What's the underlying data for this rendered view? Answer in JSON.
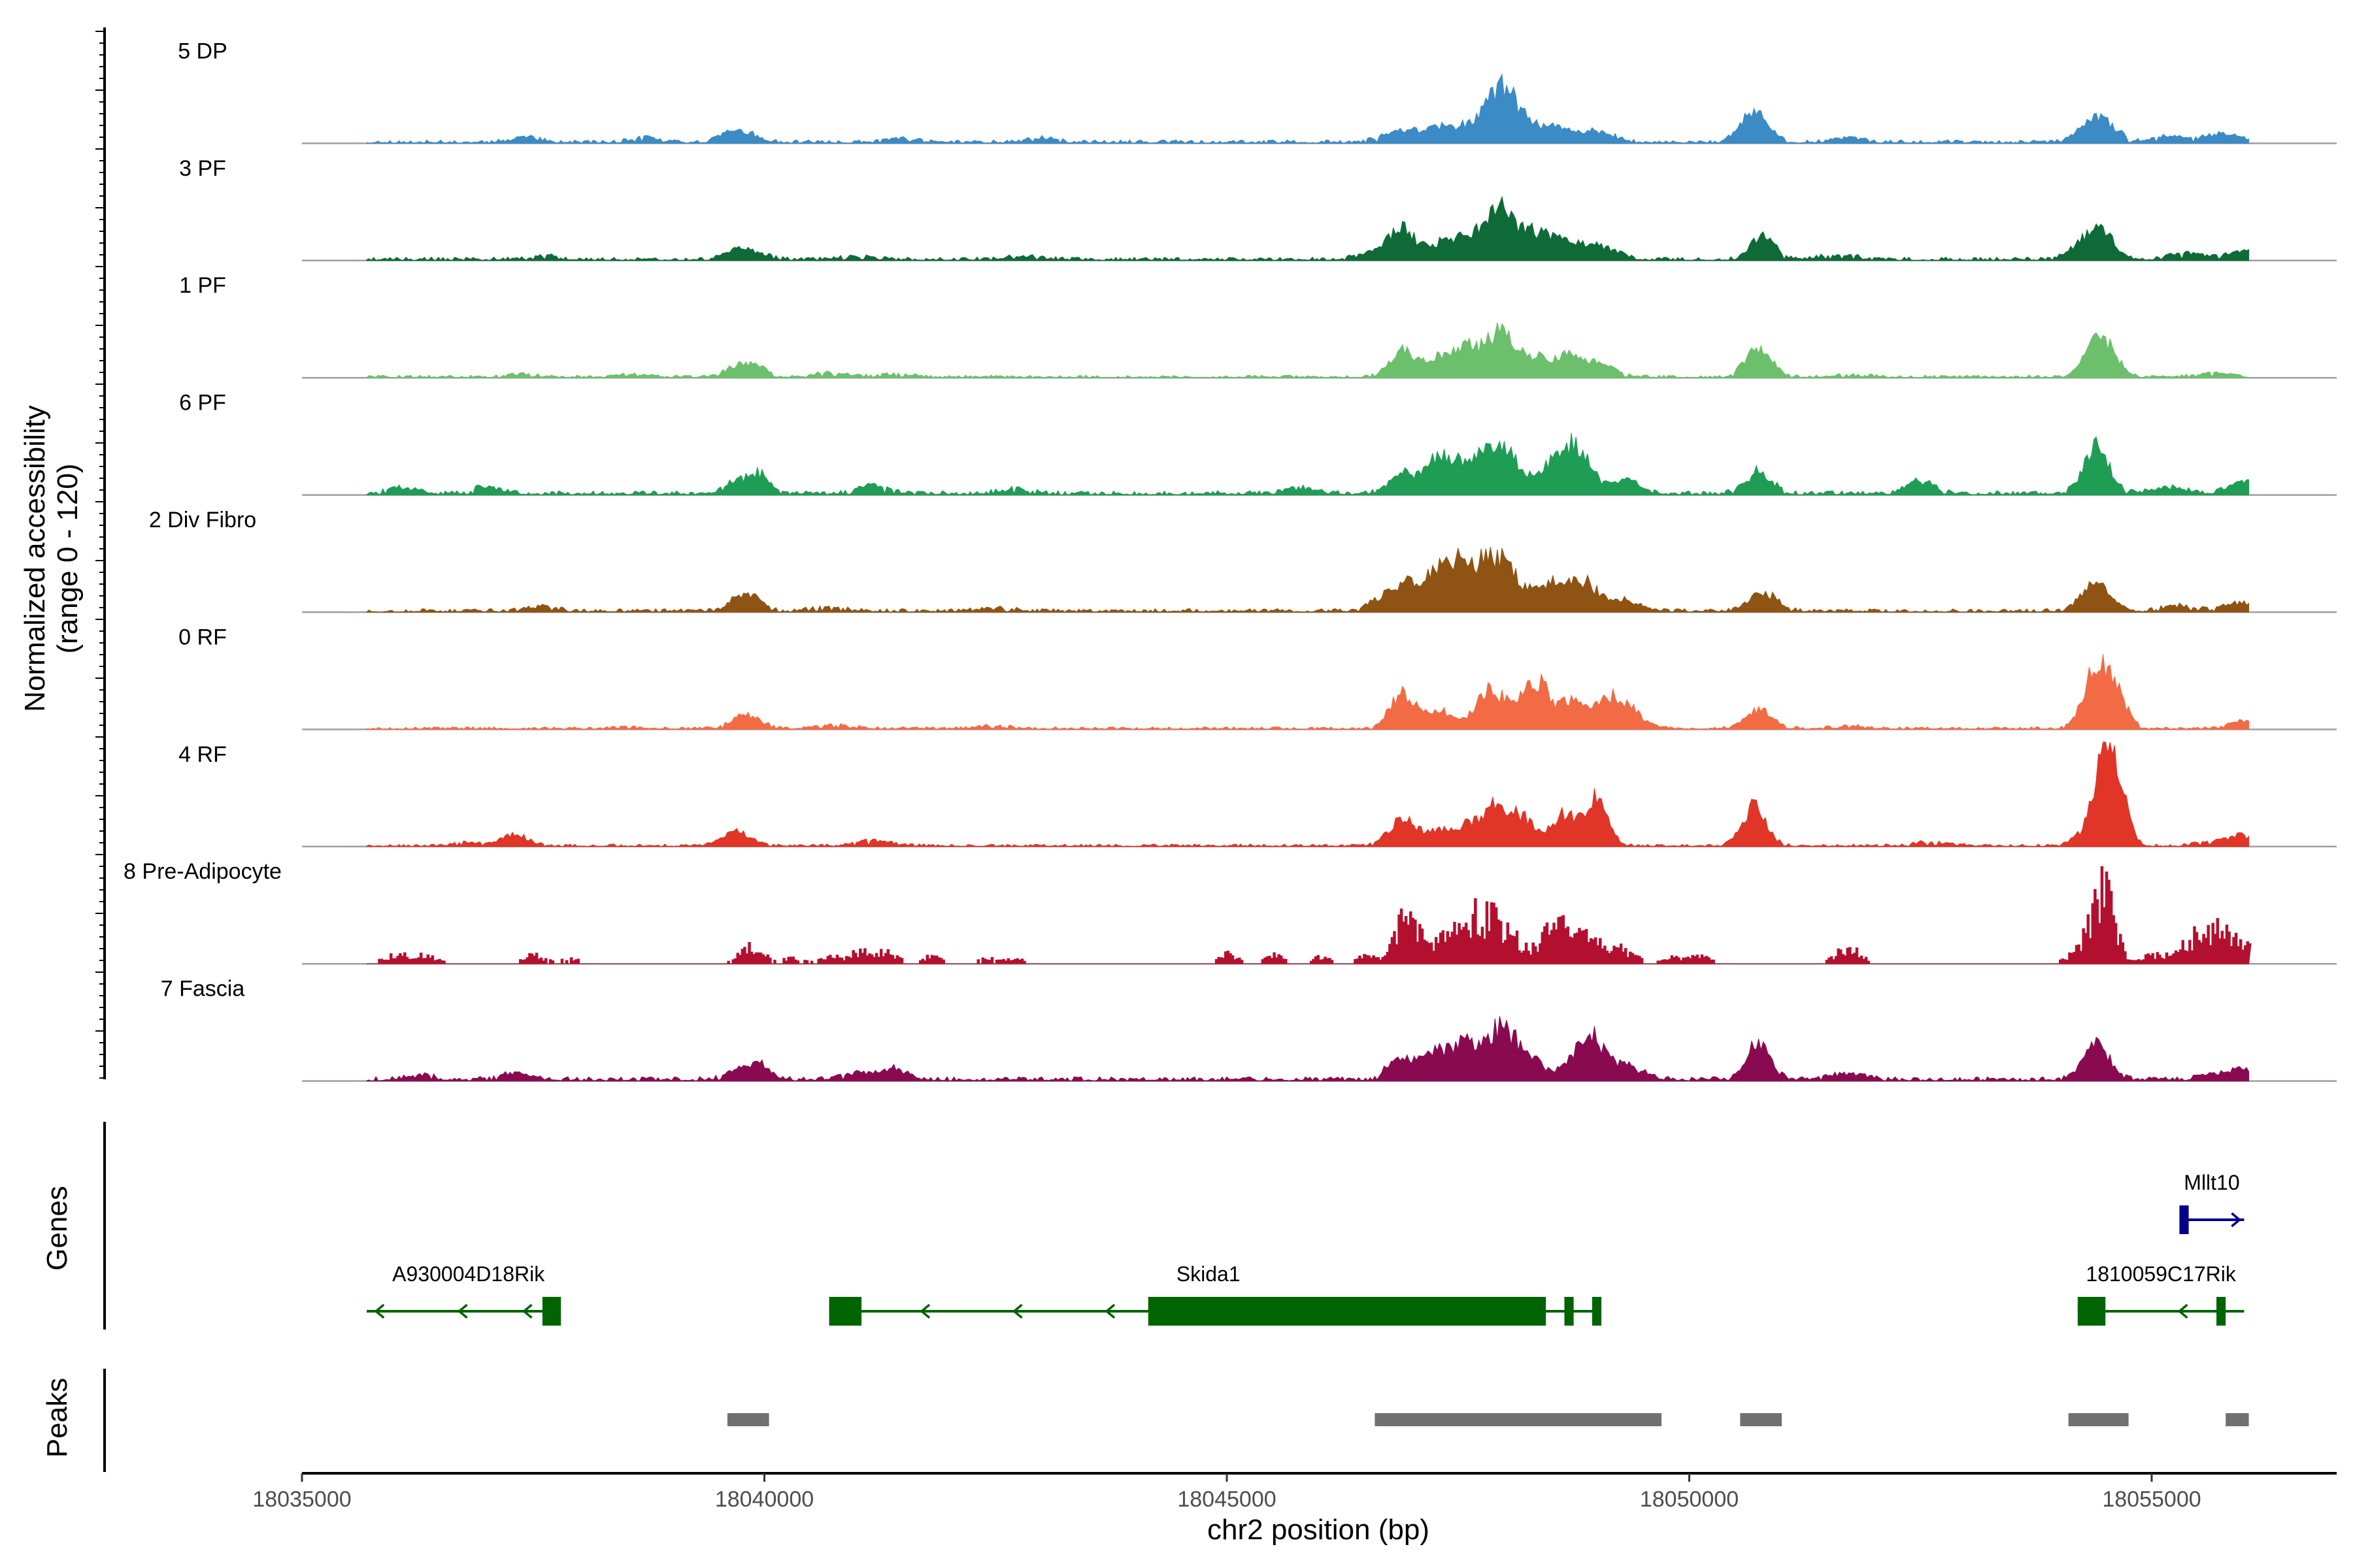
{
  "chart_data": {
    "type": "area",
    "title": "",
    "region": "chr2",
    "xlabel": "chr2 position (bp)",
    "ylabel_line1": "Normalized accessibility",
    "ylabel_line2": "(range 0 - 120)",
    "y_range": [
      0,
      120
    ],
    "xlim": [
      18035000,
      18057000
    ],
    "xticks": [
      18035000,
      18040000,
      18045000,
      18050000,
      18055000
    ],
    "xtick_labels": [
      "18035000",
      "18040000",
      "18045000",
      "18050000",
      "18055000"
    ],
    "baseline_color": "#9e9e9e",
    "tracks": [
      {
        "label": "5 DP",
        "color": "#3b8bc6",
        "style": "smooth",
        "seed": 11,
        "noise": 4,
        "peaks": [
          [
            18037400,
            6,
            150
          ],
          [
            18038700,
            5,
            140
          ],
          [
            18039700,
            13,
            180
          ],
          [
            18041500,
            4,
            160
          ],
          [
            18043000,
            5,
            150
          ],
          [
            18046900,
            12,
            200
          ],
          [
            18047300,
            15,
            160
          ],
          [
            18047650,
            18,
            160
          ],
          [
            18047950,
            54,
            140
          ],
          [
            18048200,
            22,
            150
          ],
          [
            18048550,
            15,
            160
          ],
          [
            18049000,
            12,
            170
          ],
          [
            18050700,
            34,
            150
          ],
          [
            18051700,
            5,
            160
          ],
          [
            18054300,
            7,
            150
          ],
          [
            18054450,
            26,
            150
          ],
          [
            18055200,
            6,
            200
          ],
          [
            18055800,
            10,
            180
          ]
        ]
      },
      {
        "label": "3 PF",
        "color": "#0e6b38",
        "style": "smooth",
        "seed": 23,
        "noise": 4,
        "peaks": [
          [
            18037600,
            4,
            150
          ],
          [
            18039800,
            12,
            180
          ],
          [
            18041000,
            3,
            200
          ],
          [
            18042800,
            3,
            200
          ],
          [
            18046600,
            7,
            180
          ],
          [
            18046900,
            35,
            140
          ],
          [
            18047300,
            16,
            130
          ],
          [
            18047600,
            27,
            150
          ],
          [
            18047950,
            63,
            130
          ],
          [
            18048300,
            30,
            160
          ],
          [
            18048600,
            18,
            140
          ],
          [
            18049000,
            16,
            200
          ],
          [
            18050800,
            25,
            130
          ],
          [
            18051600,
            5,
            200
          ],
          [
            18054250,
            12,
            160
          ],
          [
            18054450,
            30,
            140
          ],
          [
            18055400,
            7,
            200
          ],
          [
            18056000,
            10,
            160
          ]
        ]
      },
      {
        "label": "1 PF",
        "color": "#6cbf6b",
        "style": "smooth",
        "seed": 31,
        "noise": 3,
        "peaks": [
          [
            18037400,
            3,
            150
          ],
          [
            18038600,
            3,
            150
          ],
          [
            18039800,
            17,
            170
          ],
          [
            18040700,
            5,
            200
          ],
          [
            18041400,
            3,
            200
          ],
          [
            18046900,
            28,
            140
          ],
          [
            18047300,
            21,
            160
          ],
          [
            18047600,
            30,
            140
          ],
          [
            18047950,
            50,
            140
          ],
          [
            18048300,
            22,
            150
          ],
          [
            18048700,
            24,
            150
          ],
          [
            18049050,
            14,
            160
          ],
          [
            18050750,
            33,
            140
          ],
          [
            18051800,
            3,
            200
          ],
          [
            18054450,
            45,
            150
          ],
          [
            18055700,
            4,
            200
          ]
        ]
      },
      {
        "label": "6 PF",
        "color": "#1f9d55",
        "style": "smooth",
        "seed": 47,
        "noise": 5,
        "peaks": [
          [
            18036100,
            6,
            150
          ],
          [
            18037000,
            7,
            150
          ],
          [
            18039700,
            12,
            130
          ],
          [
            18039950,
            22,
            120
          ],
          [
            18041200,
            9,
            150
          ],
          [
            18042700,
            5,
            160
          ],
          [
            18045800,
            6,
            160
          ],
          [
            18046900,
            22,
            150
          ],
          [
            18047300,
            38,
            140
          ],
          [
            18047600,
            27,
            140
          ],
          [
            18047900,
            55,
            140
          ],
          [
            18048150,
            24,
            140
          ],
          [
            18048550,
            33,
            140
          ],
          [
            18048800,
            45,
            150
          ],
          [
            18049300,
            14,
            160
          ],
          [
            18050750,
            24,
            140
          ],
          [
            18052500,
            14,
            150
          ],
          [
            18054400,
            50,
            140
          ],
          [
            18055200,
            6,
            200
          ],
          [
            18056000,
            15,
            150
          ]
        ]
      },
      {
        "label": "2 Div Fibro",
        "color": "#8f5413",
        "style": "smooth",
        "seed": 53,
        "noise": 4,
        "peaks": [
          [
            18037600,
            5,
            150
          ],
          [
            18039800,
            20,
            150
          ],
          [
            18040700,
            4,
            200
          ],
          [
            18042500,
            3,
            200
          ],
          [
            18046700,
            16,
            150
          ],
          [
            18047000,
            27,
            150
          ],
          [
            18047300,
            38,
            140
          ],
          [
            18047550,
            48,
            140
          ],
          [
            18047850,
            50,
            140
          ],
          [
            18048100,
            35,
            140
          ],
          [
            18048500,
            30,
            140
          ],
          [
            18048850,
            34,
            150
          ],
          [
            18049300,
            12,
            160
          ],
          [
            18050800,
            20,
            150
          ],
          [
            18054400,
            33,
            150
          ],
          [
            18055300,
            6,
            200
          ],
          [
            18055950,
            10,
            150
          ]
        ]
      },
      {
        "label": "0 RF",
        "color": "#f26b44",
        "style": "smooth",
        "seed": 67,
        "noise": 3,
        "peaks": [
          [
            18038600,
            3,
            150
          ],
          [
            18039800,
            15,
            160
          ],
          [
            18040800,
            4,
            200
          ],
          [
            18042500,
            3,
            200
          ],
          [
            18046900,
            38,
            140
          ],
          [
            18047300,
            20,
            140
          ],
          [
            18047800,
            37,
            130
          ],
          [
            18048050,
            24,
            140
          ],
          [
            18048350,
            52,
            120
          ],
          [
            18048700,
            30,
            140
          ],
          [
            18049100,
            30,
            140
          ],
          [
            18049350,
            20,
            150
          ],
          [
            18050750,
            22,
            140
          ],
          [
            18051700,
            3,
            200
          ],
          [
            18054400,
            66,
            130
          ],
          [
            18054600,
            35,
            130
          ],
          [
            18056000,
            10,
            150
          ]
        ]
      },
      {
        "label": "4 RF",
        "color": "#e03527",
        "style": "smooth",
        "seed": 79,
        "noise": 3,
        "peaks": [
          [
            18036800,
            4,
            150
          ],
          [
            18037300,
            14,
            130
          ],
          [
            18039700,
            16,
            150
          ],
          [
            18041200,
            6,
            200
          ],
          [
            18046900,
            30,
            140
          ],
          [
            18047300,
            16,
            140
          ],
          [
            18047600,
            20,
            140
          ],
          [
            18047900,
            40,
            140
          ],
          [
            18048200,
            30,
            140
          ],
          [
            18048650,
            38,
            120
          ],
          [
            18049000,
            55,
            120
          ],
          [
            18050700,
            44,
            130
          ],
          [
            18052600,
            4,
            200
          ],
          [
            18054300,
            15,
            130
          ],
          [
            18054480,
            97,
            100
          ],
          [
            18054650,
            62,
            100
          ],
          [
            18055700,
            5,
            200
          ],
          [
            18056000,
            9,
            150
          ]
        ]
      },
      {
        "label": "8 Pre-Adipocyte",
        "color": "#b3102f",
        "style": "blocky",
        "seed": 97,
        "noise": 4,
        "peaks": [
          [
            18036000,
            10,
            140
          ],
          [
            18036300,
            9,
            140
          ],
          [
            18037500,
            10,
            120
          ],
          [
            18037900,
            6,
            100
          ],
          [
            18039850,
            19,
            130
          ],
          [
            18040300,
            8,
            100
          ],
          [
            18040700,
            10,
            100
          ],
          [
            18041000,
            15,
            100
          ],
          [
            18041300,
            16,
            120
          ],
          [
            18041800,
            9,
            100
          ],
          [
            18042400,
            6,
            100
          ],
          [
            18042700,
            6,
            100
          ],
          [
            18045000,
            11,
            100
          ],
          [
            18045500,
            10,
            100
          ],
          [
            18046000,
            8,
            100
          ],
          [
            18046500,
            9,
            100
          ],
          [
            18046950,
            75,
            120
          ],
          [
            18047400,
            35,
            150
          ],
          [
            18047700,
            48,
            150
          ],
          [
            18048000,
            43,
            150
          ],
          [
            18048500,
            35,
            150
          ],
          [
            18048800,
            30,
            160
          ],
          [
            18049200,
            22,
            160
          ],
          [
            18049800,
            8,
            100
          ],
          [
            18050100,
            11,
            100
          ],
          [
            18051700,
            19,
            130
          ],
          [
            18054300,
            25,
            150
          ],
          [
            18054480,
            70,
            120
          ],
          [
            18055000,
            10,
            100
          ],
          [
            18055400,
            25,
            150
          ],
          [
            18055700,
            35,
            150
          ],
          [
            18056000,
            18,
            150
          ]
        ]
      },
      {
        "label": "7 Fascia",
        "color": "#8a0a52",
        "style": "smooth",
        "seed": 113,
        "noise": 5,
        "peaks": [
          [
            18036300,
            5,
            150
          ],
          [
            18037300,
            7,
            150
          ],
          [
            18039700,
            9,
            130
          ],
          [
            18039950,
            18,
            120
          ],
          [
            18041000,
            8,
            150
          ],
          [
            18041400,
            12,
            130
          ],
          [
            18046900,
            26,
            150
          ],
          [
            18047300,
            30,
            140
          ],
          [
            18047600,
            38,
            140
          ],
          [
            18047950,
            54,
            140
          ],
          [
            18048250,
            28,
            140
          ],
          [
            18048800,
            28,
            140
          ],
          [
            18049000,
            34,
            140
          ],
          [
            18049350,
            14,
            160
          ],
          [
            18050750,
            40,
            130
          ],
          [
            18051700,
            6,
            200
          ],
          [
            18054400,
            38,
            140
          ],
          [
            18055700,
            5,
            200
          ],
          [
            18056000,
            10,
            150
          ]
        ]
      }
    ],
    "genes_title": "Genes",
    "genes": [
      {
        "name": "A930004D18Rik",
        "strand": "-",
        "color": "#006400",
        "start": 18035700,
        "end": 18037800,
        "exons": [
          [
            18037600,
            18037800
          ]
        ],
        "arrows": [
          18035800,
          18036700,
          18037400
        ]
      },
      {
        "name": "Skida1",
        "strand": "-",
        "color": "#006400",
        "start": 18040700,
        "end": 18049050,
        "exons": [
          [
            18040700,
            18041050
          ],
          [
            18044150,
            18048450
          ],
          [
            18048650,
            18048750
          ],
          [
            18048950,
            18049050
          ]
        ],
        "arrows": [
          18041700,
          18042700,
          18043700
        ]
      },
      {
        "name": "1810059C17Rik",
        "strand": "-",
        "color": "#006400",
        "start": 18054200,
        "end": 18056000,
        "exons": [
          [
            18054200,
            18054500
          ],
          [
            18055700,
            18055800
          ]
        ],
        "arrows": [
          18055300
        ]
      },
      {
        "name": "Mllt10",
        "strand": "+",
        "color": "#00008b",
        "start": 18055300,
        "end": 18056000,
        "exons": [
          [
            18055300,
            18055400
          ]
        ],
        "arrows": [
          18055950
        ]
      }
    ],
    "peaks_title": "Peaks",
    "peak_color": "#707070",
    "peak_regions": [
      [
        18039600,
        18040050
      ],
      [
        18046600,
        18049700
      ],
      [
        18050550,
        18051000
      ],
      [
        18054100,
        18054750
      ],
      [
        18055800,
        18056050
      ]
    ]
  }
}
